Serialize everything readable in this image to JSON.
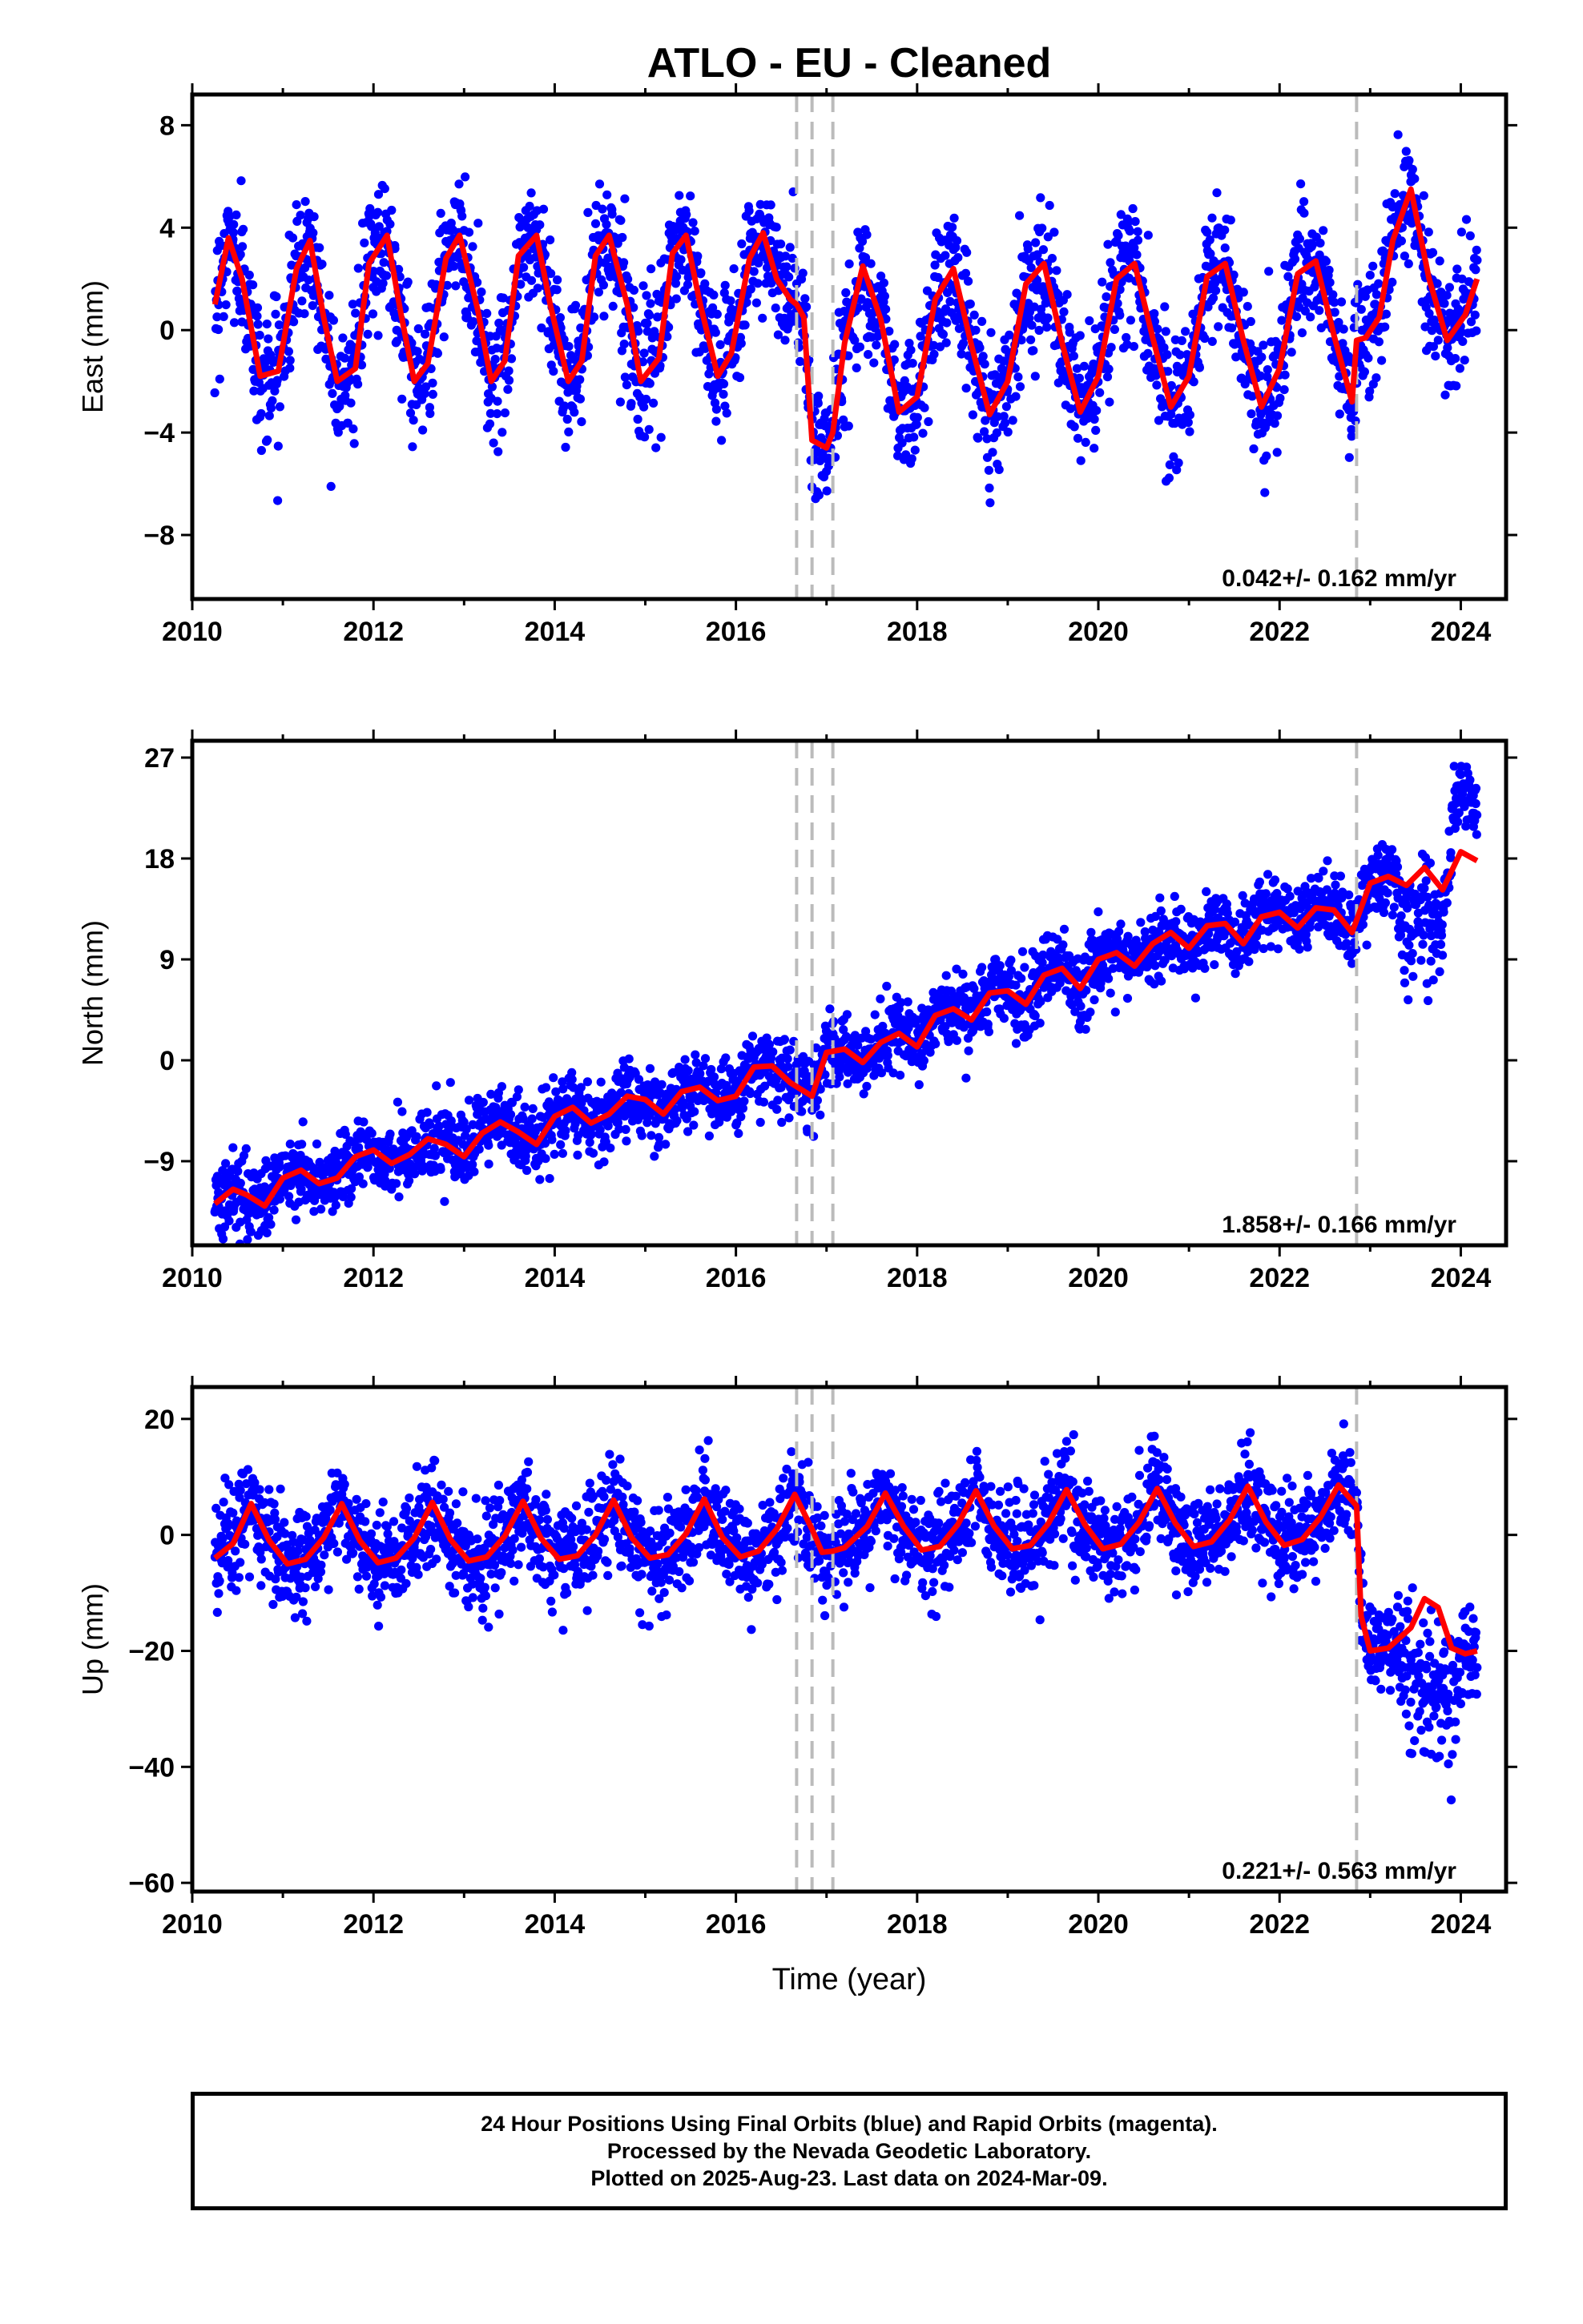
{
  "title": "ATLO  - EU - Cleaned",
  "colors": {
    "points": "#0000ff",
    "fit": "#ff0000",
    "breaks": "#bbbbbb"
  },
  "footer": {
    "line1": "24 Hour Positions Using Final Orbits (blue) and Rapid Orbits (magenta).",
    "line2": "Processed by the Nevada Geodetic Laboratory.",
    "line3": "Plotted on 2025-Aug-23. Last data on 2024-Mar-09."
  },
  "chart_data": [
    {
      "type": "scatter",
      "ylabel": "East (mm)",
      "xlabel": "",
      "xlim": [
        2010,
        2024.5
      ],
      "ylim": [
        -10.5,
        9.2
      ],
      "x_ticks": [
        2010,
        2012,
        2014,
        2016,
        2018,
        2020,
        2022,
        2024
      ],
      "x_tick_labels": [
        "2010",
        "2012",
        "2014",
        "2016",
        "2018",
        "2020",
        "2022",
        "2024"
      ],
      "y_ticks": [
        -8,
        -4,
        0,
        4,
        8
      ],
      "y_tick_labels": [
        "−8",
        "−4",
        "0",
        "4",
        "8"
      ],
      "rate_label": "0.042+/- 0.162 mm/yr",
      "breaks": [
        2016.67,
        2016.84,
        2017.07,
        2022.85
      ],
      "data_span": [
        2010.25,
        2024.18
      ],
      "series": [
        {
          "type": "line",
          "x": [
            2010.25,
            2010.4,
            2010.55,
            2010.75,
            2010.95,
            2011.15,
            2011.3,
            2011.45,
            2011.6,
            2011.8,
            2011.95,
            2012.15,
            2012.3,
            2012.45,
            2012.6,
            2012.8,
            2012.95,
            2013.15,
            2013.3,
            2013.45,
            2013.6,
            2013.8,
            2013.95,
            2014.15,
            2014.3,
            2014.45,
            2014.6,
            2014.8,
            2014.95,
            2015.15,
            2015.3,
            2015.45,
            2015.6,
            2015.8,
            2015.95,
            2016.15,
            2016.3,
            2016.45,
            2016.6,
            2016.67,
            2016.75,
            2016.84,
            2017.0,
            2017.07,
            2017.2,
            2017.4,
            2017.6,
            2017.8,
            2018.0,
            2018.2,
            2018.4,
            2018.6,
            2018.8,
            2019.0,
            2019.2,
            2019.4,
            2019.6,
            2019.8,
            2020.0,
            2020.2,
            2020.4,
            2020.6,
            2020.8,
            2021.0,
            2021.2,
            2021.4,
            2021.6,
            2021.8,
            2022.0,
            2022.2,
            2022.4,
            2022.6,
            2022.8,
            2022.85,
            2022.95,
            2023.1,
            2023.25,
            2023.45,
            2023.65,
            2023.85,
            2024.05,
            2024.18
          ],
          "y": [
            1.0,
            3.6,
            2.0,
            -1.8,
            -1.6,
            2.4,
            3.5,
            0.5,
            -2.0,
            -1.5,
            2.6,
            3.7,
            0.7,
            -2.0,
            -1.3,
            2.8,
            3.7,
            0.8,
            -2.0,
            -1.2,
            2.9,
            3.7,
            1.0,
            -2.0,
            -1.2,
            2.9,
            3.7,
            1.0,
            -2.0,
            -1.1,
            3.0,
            3.7,
            1.1,
            -1.8,
            -0.9,
            2.8,
            3.8,
            2.0,
            1.2,
            1.0,
            0.5,
            -4.3,
            -4.6,
            -4.0,
            -0.5,
            2.5,
            0.4,
            -3.2,
            -2.6,
            1.2,
            2.4,
            -0.6,
            -3.3,
            -2.0,
            1.8,
            2.6,
            -0.5,
            -3.2,
            -1.8,
            2.0,
            2.6,
            -0.3,
            -3.0,
            -1.8,
            2.1,
            2.6,
            -0.4,
            -3.0,
            -1.5,
            2.2,
            2.7,
            -0.2,
            -2.8,
            -0.4,
            -0.3,
            0.5,
            3.5,
            5.5,
            2.0,
            -0.4,
            0.6,
            2.0
          ]
        }
      ]
    },
    {
      "type": "scatter",
      "ylabel": "North (mm)",
      "xlabel": "",
      "xlim": [
        2010,
        2024.5
      ],
      "ylim": [
        -16.5,
        28.5
      ],
      "x_ticks": [
        2010,
        2012,
        2014,
        2016,
        2018,
        2020,
        2022,
        2024
      ],
      "x_tick_labels": [
        "2010",
        "2012",
        "2014",
        "2016",
        "2018",
        "2020",
        "2022",
        "2024"
      ],
      "y_ticks": [
        -9,
        0,
        9,
        18,
        27
      ],
      "y_tick_labels": [
        "−9",
        "0",
        "9",
        "18",
        "27"
      ],
      "rate_label": "1.858+/- 0.166 mm/yr",
      "breaks": [
        2016.67,
        2016.84,
        2017.07,
        2022.85
      ],
      "data_span": [
        2010.25,
        2024.18
      ],
      "series": [
        {
          "type": "line",
          "x": [
            2010.25,
            2010.45,
            2010.6,
            2010.8,
            2011.0,
            2011.2,
            2011.4,
            2011.6,
            2011.8,
            2012.0,
            2012.2,
            2012.4,
            2012.6,
            2012.8,
            2013.0,
            2013.2,
            2013.4,
            2013.6,
            2013.8,
            2014.0,
            2014.2,
            2014.4,
            2014.6,
            2014.8,
            2015.0,
            2015.2,
            2015.4,
            2015.6,
            2015.8,
            2016.0,
            2016.2,
            2016.4,
            2016.6,
            2016.84,
            2017.0,
            2017.2,
            2017.4,
            2017.6,
            2017.8,
            2018.0,
            2018.2,
            2018.4,
            2018.6,
            2018.8,
            2019.0,
            2019.2,
            2019.4,
            2019.6,
            2019.8,
            2020.0,
            2020.2,
            2020.4,
            2020.6,
            2020.8,
            2021.0,
            2021.2,
            2021.4,
            2021.6,
            2021.8,
            2022.0,
            2022.2,
            2022.4,
            2022.6,
            2022.8,
            2022.85,
            2023.0,
            2023.2,
            2023.4,
            2023.6,
            2023.8,
            2024.0,
            2024.18
          ],
          "y": [
            -12.8,
            -11.5,
            -12.0,
            -13.0,
            -10.5,
            -9.8,
            -11.0,
            -10.5,
            -8.6,
            -8.0,
            -9.2,
            -8.4,
            -7.0,
            -7.5,
            -8.6,
            -6.5,
            -5.5,
            -6.4,
            -7.5,
            -5.0,
            -4.2,
            -5.6,
            -4.8,
            -3.2,
            -3.5,
            -4.8,
            -2.8,
            -2.4,
            -3.6,
            -3.2,
            -0.6,
            -0.5,
            -2.0,
            -3.2,
            0.7,
            1.0,
            -0.2,
            1.6,
            2.4,
            1.2,
            4.0,
            4.6,
            3.6,
            6.0,
            6.2,
            5.0,
            7.6,
            8.2,
            6.4,
            9.0,
            9.6,
            8.4,
            10.4,
            11.4,
            10.0,
            12.0,
            12.2,
            10.4,
            12.8,
            13.2,
            11.8,
            13.6,
            13.4,
            11.4,
            12.5,
            15.8,
            16.4,
            15.6,
            17.2,
            15.2,
            18.6,
            17.8
          ]
        }
      ]
    },
    {
      "type": "scatter",
      "ylabel": "Up (mm)",
      "xlabel": "Time (year)",
      "xlim": [
        2010,
        2024.5
      ],
      "ylim": [
        -61.5,
        25.5
      ],
      "x_ticks": [
        2010,
        2012,
        2014,
        2016,
        2018,
        2020,
        2022,
        2024
      ],
      "x_tick_labels": [
        "2010",
        "2012",
        "2014",
        "2016",
        "2018",
        "2020",
        "2022",
        "2024"
      ],
      "y_ticks": [
        -60,
        -40,
        -20,
        0,
        20
      ],
      "y_tick_labels": [
        "−60",
        "−40",
        "−20",
        "0",
        "20"
      ],
      "rate_label": "0.221+/- 0.563 mm/yr",
      "breaks": [
        2016.67,
        2016.84,
        2017.07,
        2022.85
      ],
      "data_span": [
        2010.25,
        2024.18
      ],
      "series": [
        {
          "type": "line",
          "x": [
            2010.25,
            2010.45,
            2010.65,
            2010.85,
            2011.05,
            2011.25,
            2011.45,
            2011.65,
            2011.85,
            2012.05,
            2012.25,
            2012.45,
            2012.65,
            2012.85,
            2013.05,
            2013.25,
            2013.45,
            2013.65,
            2013.85,
            2014.05,
            2014.25,
            2014.45,
            2014.65,
            2014.85,
            2015.05,
            2015.25,
            2015.45,
            2015.65,
            2015.85,
            2016.05,
            2016.25,
            2016.45,
            2016.65,
            2016.84,
            2016.95,
            2017.07,
            2017.2,
            2017.45,
            2017.65,
            2017.85,
            2018.05,
            2018.25,
            2018.45,
            2018.65,
            2018.85,
            2019.05,
            2019.25,
            2019.45,
            2019.65,
            2019.85,
            2020.05,
            2020.25,
            2020.45,
            2020.65,
            2020.85,
            2021.05,
            2021.25,
            2021.45,
            2021.65,
            2021.85,
            2022.05,
            2022.25,
            2022.45,
            2022.65,
            2022.85,
            2022.9,
            2023.0,
            2023.2,
            2023.45,
            2023.6,
            2023.75,
            2023.9,
            2024.05,
            2024.18
          ],
          "y": [
            -4.0,
            -1.5,
            5.4,
            -1.0,
            -5.0,
            -4.2,
            -0.5,
            5.4,
            -1.0,
            -4.8,
            -4.0,
            -0.5,
            5.6,
            -0.8,
            -4.5,
            -3.8,
            -0.2,
            5.8,
            -0.6,
            -4.2,
            -3.6,
            0.0,
            6.0,
            -0.5,
            -4.0,
            -3.4,
            0.2,
            6.2,
            -0.4,
            -3.8,
            -2.8,
            1.0,
            7.0,
            1.0,
            -3.0,
            -2.8,
            -2.2,
            1.5,
            7.2,
            1.5,
            -2.6,
            -2.0,
            1.8,
            7.6,
            1.5,
            -2.4,
            -1.8,
            2.0,
            7.8,
            1.8,
            -2.4,
            -1.6,
            2.2,
            8.0,
            2.0,
            -2.0,
            -1.2,
            2.6,
            8.4,
            2.2,
            -1.8,
            -0.8,
            3.0,
            8.6,
            5.0,
            -14.0,
            -20.0,
            -19.5,
            -16.0,
            -11.0,
            -12.5,
            -19.5,
            -20.5,
            -20.0
          ]
        }
      ]
    }
  ]
}
